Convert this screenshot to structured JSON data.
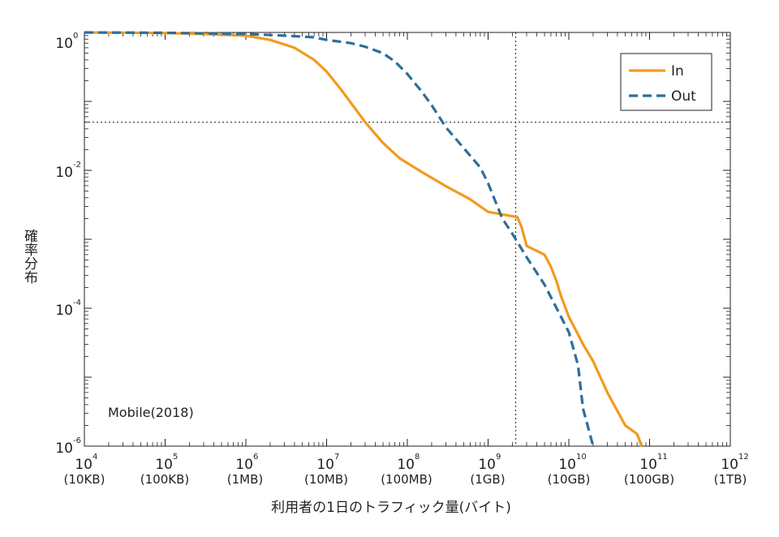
{
  "chart_data": {
    "type": "line",
    "title": "",
    "annotation": "Mobile(2018)",
    "xlabel": "利用者の1日のトラフィック量(バイト)",
    "ylabel": "確率分布",
    "xscale": "log",
    "yscale": "log",
    "xlim": [
      10000,
      1000000000000
    ],
    "ylim": [
      1e-06,
      1
    ],
    "x_ticks": [
      {
        "exp": "4",
        "unit": "(10KB)"
      },
      {
        "exp": "5",
        "unit": "(100KB)"
      },
      {
        "exp": "6",
        "unit": "(1MB)"
      },
      {
        "exp": "7",
        "unit": "(10MB)"
      },
      {
        "exp": "8",
        "unit": "(100MB)"
      },
      {
        "exp": "9",
        "unit": "(1GB)"
      },
      {
        "exp": "10",
        "unit": "(10GB)"
      },
      {
        "exp": "11",
        "unit": "(100GB)"
      },
      {
        "exp": "12",
        "unit": "(1TB)"
      }
    ],
    "y_ticks": [
      {
        "exp": "0"
      },
      {
        "exp": "-2"
      },
      {
        "exp": "-4"
      },
      {
        "exp": "-6"
      }
    ],
    "tick_base": "10",
    "reference_lines": {
      "x": 2200000000,
      "y": 0.05
    },
    "legend": {
      "position": "top-right",
      "entries": [
        "In",
        "Out"
      ]
    },
    "series": [
      {
        "name": "In",
        "color": "#f39a1e",
        "dash": "solid",
        "x": [
          10000,
          100000,
          300000,
          1000000,
          2000000,
          4000000,
          7000000,
          10000000,
          15000000,
          20000000,
          30000000,
          50000000,
          80000000,
          150000000,
          300000000,
          600000000,
          1000000000,
          2300000000,
          2600000000,
          3000000000,
          5000000000,
          6000000000,
          7000000000,
          8000000000,
          10000000000,
          12000000000,
          15000000000,
          20000000000,
          30000000000,
          50000000000,
          70000000000,
          80000000000
        ],
        "y": [
          1.0,
          0.98,
          0.95,
          0.9,
          0.78,
          0.6,
          0.4,
          0.27,
          0.15,
          0.095,
          0.05,
          0.025,
          0.015,
          0.0095,
          0.0059,
          0.0038,
          0.0025,
          0.0021,
          0.0015,
          0.0008,
          0.0006,
          0.0004,
          0.00025,
          0.00015,
          7.5e-05,
          5e-05,
          3e-05,
          1.7e-05,
          6e-06,
          2e-06,
          1.5e-06,
          1e-06
        ]
      },
      {
        "name": "Out",
        "color": "#2e6e99",
        "dash": "dashed",
        "x": [
          10000,
          100000,
          1000000,
          3000000,
          7000000,
          10000000,
          20000000,
          30000000,
          50000000,
          70000000,
          100000000,
          150000000,
          200000000,
          300000000,
          500000000,
          800000000,
          1000000000,
          1500000000,
          2000000000,
          3000000000,
          5000000000,
          8000000000,
          10000000000,
          13000000000,
          15000000000,
          20000000000
        ],
        "y": [
          1.0,
          0.99,
          0.95,
          0.9,
          0.85,
          0.78,
          0.7,
          0.62,
          0.5,
          0.38,
          0.25,
          0.14,
          0.088,
          0.042,
          0.021,
          0.011,
          0.0065,
          0.002,
          0.0012,
          0.00055,
          0.00022,
          7.5e-05,
          4.5e-05,
          1.5e-05,
          3.5e-06,
          1e-06
        ]
      }
    ]
  }
}
